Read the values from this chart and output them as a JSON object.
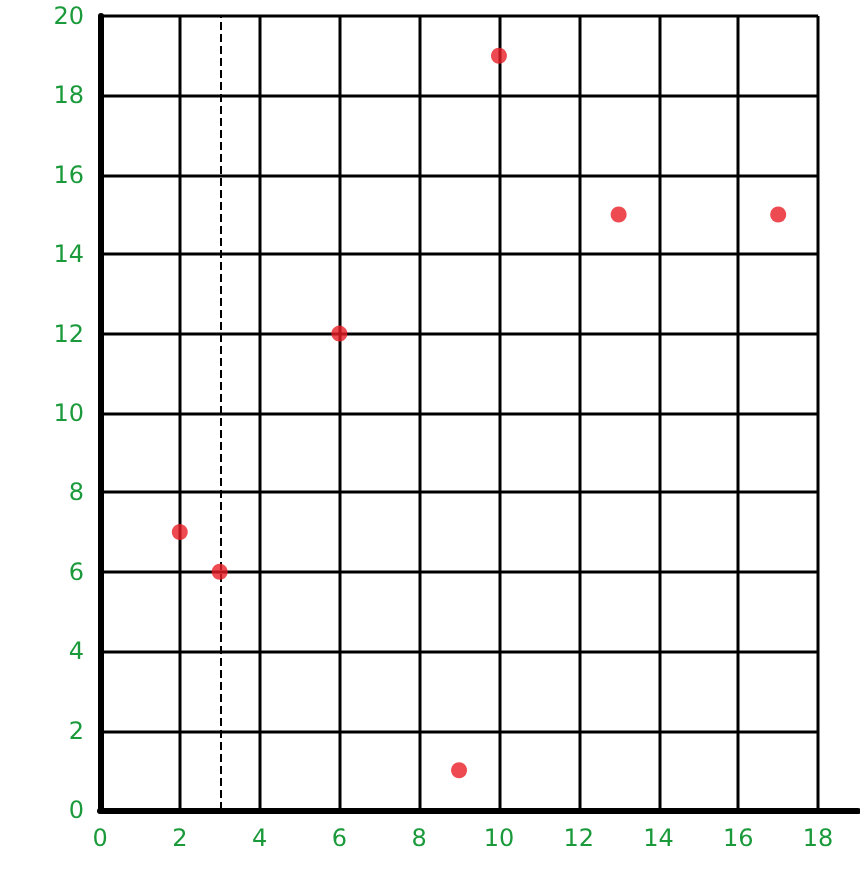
{
  "chart_data": {
    "type": "scatter",
    "x": [
      2,
      3,
      6,
      9,
      10,
      13,
      17
    ],
    "values": [
      7,
      6,
      12,
      1,
      19,
      15,
      15
    ],
    "color": "#e81e25",
    "marker": "circle",
    "xlim": [
      0,
      19
    ],
    "xticks": [
      0,
      2,
      4,
      6,
      8,
      10,
      12,
      14,
      16,
      18
    ],
    "ylim": [
      0,
      20
    ],
    "yticks": [
      0,
      2,
      4,
      6,
      8,
      10,
      12,
      14,
      16,
      18,
      20
    ],
    "grid": true,
    "ref_lines": [
      {
        "axis": "x",
        "value": 3,
        "line_style": "dashed",
        "color": "#000000"
      }
    ]
  }
}
